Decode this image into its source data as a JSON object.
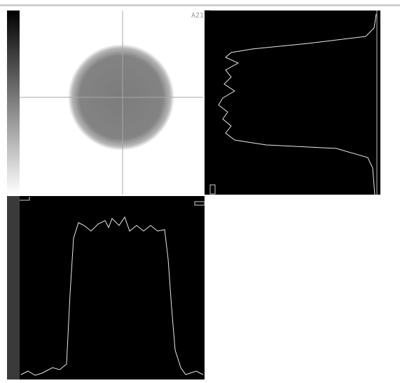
{
  "image_panel": {
    "label": "A21"
  }
}
